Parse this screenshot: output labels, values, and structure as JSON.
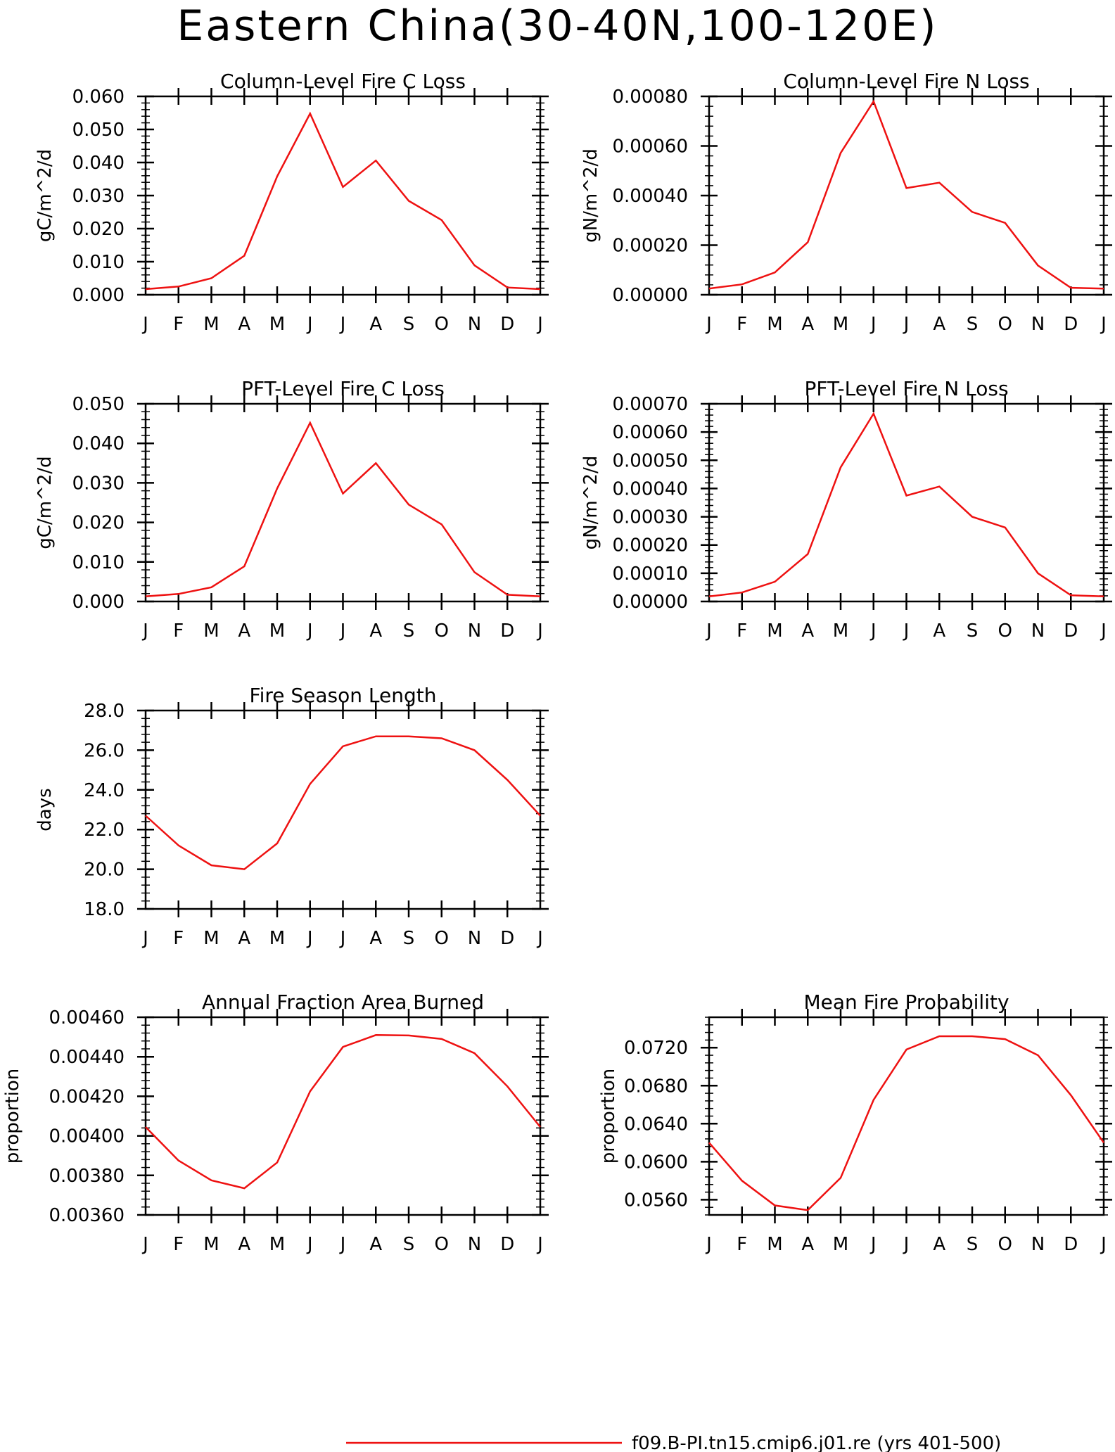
{
  "figure_title": "Eastern China(30-40N,100-120E)",
  "legend": {
    "label": "f09.B-PI.tn15.cmip6.j01.re (yrs 401-500)",
    "color": "#ee1111"
  },
  "chart_data": [
    {
      "type": "line",
      "title": "Column-Level Fire C Loss",
      "ylabel": "gC/m^2/d",
      "categories": [
        "J",
        "F",
        "M",
        "A",
        "M",
        "J",
        "J",
        "A",
        "S",
        "O",
        "N",
        "D",
        "J"
      ],
      "ylim": [
        0,
        0.06
      ],
      "yticks": [
        "0.000",
        "0.010",
        "0.020",
        "0.030",
        "0.040",
        "0.050",
        "0.060"
      ],
      "series": [
        {
          "values": [
            0.0017,
            0.0025,
            0.005,
            0.0118,
            0.0358,
            0.0548,
            0.0326,
            0.0406,
            0.0284,
            0.0226,
            0.0089,
            0.0022,
            0.0017
          ]
        }
      ]
    },
    {
      "type": "line",
      "title": "Column-Level Fire N Loss",
      "ylabel": "gN/m^2/d",
      "categories": [
        "J",
        "F",
        "M",
        "A",
        "M",
        "J",
        "J",
        "A",
        "S",
        "O",
        "N",
        "D",
        "J"
      ],
      "ylim": [
        0,
        0.0008
      ],
      "yticks": [
        "0.00000",
        "0.00020",
        "0.00040",
        "0.00060",
        "0.00080"
      ],
      "series": [
        {
          "values": [
            2.5e-05,
            4.2e-05,
            9e-05,
            0.000212,
            0.000572,
            0.00078,
            0.00043,
            0.000452,
            0.000334,
            0.00029,
            0.000118,
            2.8e-05,
            2.5e-05
          ]
        }
      ]
    },
    {
      "type": "line",
      "title": "PFT-Level Fire C Loss",
      "ylabel": "gC/m^2/d",
      "categories": [
        "J",
        "F",
        "M",
        "A",
        "M",
        "J",
        "J",
        "A",
        "S",
        "O",
        "N",
        "D",
        "J"
      ],
      "ylim": [
        0,
        0.05
      ],
      "yticks": [
        "0.000",
        "0.010",
        "0.020",
        "0.030",
        "0.040",
        "0.050"
      ],
      "series": [
        {
          "values": [
            0.0013,
            0.0019,
            0.0036,
            0.0089,
            0.0286,
            0.0452,
            0.0273,
            0.035,
            0.0245,
            0.0195,
            0.0074,
            0.0017,
            0.0013
          ]
        }
      ]
    },
    {
      "type": "line",
      "title": "PFT-Level Fire N Loss",
      "ylabel": "gN/m^2/d",
      "categories": [
        "J",
        "F",
        "M",
        "A",
        "M",
        "J",
        "J",
        "A",
        "S",
        "O",
        "N",
        "D",
        "J"
      ],
      "ylim": [
        0,
        0.0007
      ],
      "yticks": [
        "0.00000",
        "0.00010",
        "0.00020",
        "0.00030",
        "0.00040",
        "0.00050",
        "0.00060",
        "0.00070"
      ],
      "series": [
        {
          "values": [
            1.8e-05,
            3.2e-05,
            7e-05,
            0.000168,
            0.000475,
            0.000665,
            0.000375,
            0.000407,
            0.0003,
            0.000262,
            0.0001,
            2.2e-05,
            1.8e-05
          ]
        }
      ]
    },
    {
      "type": "line",
      "title": "Fire Season Length",
      "ylabel": "days",
      "categories": [
        "J",
        "F",
        "M",
        "A",
        "M",
        "J",
        "J",
        "A",
        "S",
        "O",
        "N",
        "D",
        "J"
      ],
      "ylim": [
        18,
        28
      ],
      "yticks": [
        "18.0",
        "20.0",
        "22.0",
        "24.0",
        "26.0",
        "28.0"
      ],
      "series": [
        {
          "values": [
            22.7,
            21.2,
            20.2,
            20.0,
            21.3,
            24.3,
            26.2,
            26.7,
            26.7,
            26.6,
            26.0,
            24.5,
            22.7
          ]
        }
      ]
    },
    {
      "type": "line",
      "title": "Annual Fraction Area Burned",
      "ylabel": "proportion",
      "categories": [
        "J",
        "F",
        "M",
        "A",
        "M",
        "J",
        "J",
        "A",
        "S",
        "O",
        "N",
        "D",
        "J"
      ],
      "ylim": [
        0.0036,
        0.0046
      ],
      "yticks": [
        "0.00360",
        "0.00380",
        "0.00400",
        "0.00420",
        "0.00440",
        "0.00460"
      ],
      "series": [
        {
          "values": [
            0.004045,
            0.003875,
            0.003775,
            0.003735,
            0.003865,
            0.004225,
            0.00445,
            0.00451,
            0.004508,
            0.00449,
            0.004418,
            0.00425,
            0.004045
          ]
        }
      ]
    },
    {
      "type": "line",
      "title": "Mean Fire Probability",
      "ylabel": "proportion",
      "categories": [
        "J",
        "F",
        "M",
        "A",
        "M",
        "J",
        "J",
        "A",
        "S",
        "O",
        "N",
        "D",
        "J"
      ],
      "ylim": [
        0.0544,
        0.0752
      ],
      "yticks": [
        "0.0560",
        "0.0600",
        "0.0640",
        "0.0680",
        "0.0720"
      ],
      "series": [
        {
          "values": [
            0.062,
            0.058,
            0.0554,
            0.0549,
            0.0583,
            0.0665,
            0.0718,
            0.0732,
            0.0732,
            0.0729,
            0.0712,
            0.067,
            0.062
          ]
        }
      ]
    }
  ]
}
